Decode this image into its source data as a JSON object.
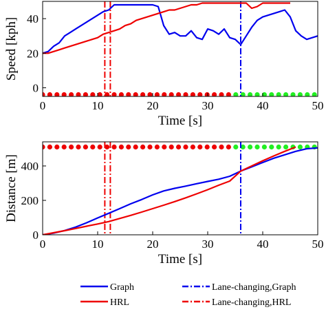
{
  "chart_data": [
    {
      "type": "line",
      "xlabel": "Time [s]",
      "ylabel": "Speed [kph]",
      "xlim": [
        0,
        50
      ],
      "ylim": [
        -5,
        50
      ],
      "xticks": [
        "0",
        "10",
        "20",
        "30",
        "40",
        "50"
      ],
      "yticks": [
        "0",
        "20",
        "40"
      ],
      "grid": false,
      "series": [
        {
          "name": "Graph",
          "color": "#0000ee",
          "style": "solid",
          "x": [
            0,
            1,
            2,
            3,
            4,
            5,
            6,
            7,
            8,
            9,
            10,
            11,
            12,
            13,
            14,
            15,
            16,
            17,
            18,
            19,
            20,
            21,
            22,
            23,
            24,
            25,
            26,
            27,
            28,
            29,
            30,
            31,
            32,
            33,
            34,
            35,
            36,
            37,
            38,
            39,
            40,
            41,
            42,
            43,
            44,
            45,
            46,
            47,
            48,
            49,
            50
          ],
          "y": [
            20,
            21,
            24,
            26,
            30,
            32,
            34,
            36,
            38,
            40,
            42,
            44,
            45,
            48,
            48,
            48,
            48,
            48,
            48,
            48,
            48,
            47,
            36,
            31,
            32,
            30,
            30,
            33,
            29,
            28,
            34,
            33,
            31,
            34,
            29,
            28,
            25,
            30,
            35,
            39,
            41,
            42,
            43,
            44,
            45,
            41,
            33,
            30,
            28,
            29,
            30
          ]
        },
        {
          "name": "HRL",
          "color": "#ee0000",
          "style": "solid",
          "x": [
            0,
            1,
            2,
            3,
            4,
            5,
            6,
            7,
            8,
            9,
            10,
            11,
            12,
            13,
            14,
            15,
            16,
            17,
            18,
            19,
            20,
            21,
            22,
            23,
            24,
            25,
            26,
            27,
            28,
            29,
            30,
            31,
            32,
            33,
            34,
            35,
            36,
            37,
            38,
            39,
            40,
            41,
            42,
            43,
            44,
            45
          ],
          "y": [
            20,
            20,
            21,
            22,
            23,
            24,
            25,
            26,
            27,
            28,
            29,
            31,
            32,
            33,
            34,
            36,
            37,
            39,
            40,
            41,
            42,
            43,
            44,
            45,
            45,
            46,
            47,
            48,
            48,
            49,
            49,
            49,
            49,
            49,
            49,
            49,
            49,
            49,
            46,
            47,
            49,
            49,
            49,
            49,
            49,
            49
          ]
        }
      ],
      "vlines": [
        {
          "name": "Lane-changing,Graph",
          "x": 36,
          "color": "#0000ee",
          "style": "dashdot"
        },
        {
          "name": "Lane-changing,HRL",
          "x": 11.3,
          "color": "#ee0000",
          "style": "dashdot"
        },
        {
          "name": "Lane-changing,HRL",
          "x": 12.3,
          "color": "#ee0000",
          "style": "dashdot"
        }
      ],
      "markers": {
        "y": -4,
        "points": [
          {
            "x": 0,
            "c": "r"
          },
          {
            "x": 1.3,
            "c": "r"
          },
          {
            "x": 2.6,
            "c": "r"
          },
          {
            "x": 3.9,
            "c": "r"
          },
          {
            "x": 5.2,
            "c": "r"
          },
          {
            "x": 6.5,
            "c": "r"
          },
          {
            "x": 7.8,
            "c": "r"
          },
          {
            "x": 9.1,
            "c": "r"
          },
          {
            "x": 10.4,
            "c": "r"
          },
          {
            "x": 11.7,
            "c": "r"
          },
          {
            "x": 13,
            "c": "r"
          },
          {
            "x": 14.3,
            "c": "r"
          },
          {
            "x": 15.6,
            "c": "r"
          },
          {
            "x": 16.9,
            "c": "r"
          },
          {
            "x": 18.2,
            "c": "r"
          },
          {
            "x": 19.5,
            "c": "r"
          },
          {
            "x": 20.8,
            "c": "r"
          },
          {
            "x": 22.1,
            "c": "r"
          },
          {
            "x": 23.4,
            "c": "r"
          },
          {
            "x": 24.7,
            "c": "r"
          },
          {
            "x": 26,
            "c": "r"
          },
          {
            "x": 27.3,
            "c": "r"
          },
          {
            "x": 28.6,
            "c": "r"
          },
          {
            "x": 29.9,
            "c": "r"
          },
          {
            "x": 31.2,
            "c": "r"
          },
          {
            "x": 32.5,
            "c": "r"
          },
          {
            "x": 33.8,
            "c": "r"
          },
          {
            "x": 35.1,
            "c": "g"
          },
          {
            "x": 36.4,
            "c": "g"
          },
          {
            "x": 37.7,
            "c": "g"
          },
          {
            "x": 39,
            "c": "g"
          },
          {
            "x": 40.3,
            "c": "g"
          },
          {
            "x": 41.6,
            "c": "g"
          },
          {
            "x": 42.9,
            "c": "g"
          },
          {
            "x": 44.2,
            "c": "g"
          },
          {
            "x": 45.5,
            "c": "g"
          },
          {
            "x": 46.8,
            "c": "g"
          },
          {
            "x": 48.1,
            "c": "g"
          },
          {
            "x": 49.4,
            "c": "g"
          }
        ]
      }
    },
    {
      "type": "line",
      "xlabel": "Time [s]",
      "ylabel": "Distance [m]",
      "xlim": [
        0,
        50
      ],
      "ylim": [
        0,
        540
      ],
      "xticks": [
        "0",
        "10",
        "20",
        "30",
        "40",
        "50"
      ],
      "yticks": [
        "0",
        "200",
        "400"
      ],
      "grid": false,
      "series": [
        {
          "name": "Graph",
          "color": "#0000ee",
          "style": "solid",
          "x": [
            0,
            2,
            4,
            6,
            8,
            10,
            12,
            14,
            16,
            18,
            20,
            22,
            24,
            26,
            28,
            30,
            32,
            34,
            36,
            38,
            40,
            42,
            44,
            46,
            48,
            50
          ],
          "y": [
            0,
            10,
            25,
            45,
            70,
            98,
            125,
            152,
            180,
            205,
            232,
            255,
            270,
            283,
            297,
            310,
            323,
            340,
            370,
            395,
            420,
            445,
            465,
            485,
            500,
            505
          ]
        },
        {
          "name": "HRL",
          "color": "#ee0000",
          "style": "solid",
          "x": [
            0,
            2,
            4,
            6,
            8,
            10,
            12,
            14,
            16,
            18,
            20,
            22,
            24,
            26,
            28,
            30,
            32,
            34,
            36,
            38,
            40,
            42,
            44,
            46
          ],
          "y": [
            0,
            12,
            24,
            37,
            50,
            63,
            77,
            95,
            113,
            132,
            152,
            172,
            193,
            215,
            238,
            262,
            288,
            312,
            370,
            400,
            430,
            458,
            485,
            510
          ]
        }
      ],
      "vlines": [
        {
          "name": "Lane-changing,Graph",
          "x": 36,
          "color": "#0000ee",
          "style": "dashdot"
        },
        {
          "name": "Lane-changing,HRL",
          "x": 11.3,
          "color": "#ee0000",
          "style": "dashdot"
        },
        {
          "name": "Lane-changing,HRL",
          "x": 12.3,
          "color": "#ee0000",
          "style": "dashdot"
        }
      ],
      "markers": {
        "y": 510,
        "points": [
          {
            "x": 0,
            "c": "r"
          },
          {
            "x": 1.3,
            "c": "r"
          },
          {
            "x": 2.6,
            "c": "r"
          },
          {
            "x": 3.9,
            "c": "r"
          },
          {
            "x": 5.2,
            "c": "r"
          },
          {
            "x": 6.5,
            "c": "r"
          },
          {
            "x": 7.8,
            "c": "r"
          },
          {
            "x": 9.1,
            "c": "r"
          },
          {
            "x": 10.4,
            "c": "r"
          },
          {
            "x": 11.7,
            "c": "r"
          },
          {
            "x": 13,
            "c": "r"
          },
          {
            "x": 14.3,
            "c": "r"
          },
          {
            "x": 15.6,
            "c": "r"
          },
          {
            "x": 16.9,
            "c": "r"
          },
          {
            "x": 18.2,
            "c": "r"
          },
          {
            "x": 19.5,
            "c": "r"
          },
          {
            "x": 20.8,
            "c": "r"
          },
          {
            "x": 22.1,
            "c": "r"
          },
          {
            "x": 23.4,
            "c": "r"
          },
          {
            "x": 24.7,
            "c": "r"
          },
          {
            "x": 26,
            "c": "r"
          },
          {
            "x": 27.3,
            "c": "r"
          },
          {
            "x": 28.6,
            "c": "r"
          },
          {
            "x": 29.9,
            "c": "r"
          },
          {
            "x": 31.2,
            "c": "r"
          },
          {
            "x": 32.5,
            "c": "r"
          },
          {
            "x": 33.8,
            "c": "r"
          },
          {
            "x": 35.1,
            "c": "g"
          },
          {
            "x": 36.4,
            "c": "g"
          },
          {
            "x": 37.7,
            "c": "g"
          },
          {
            "x": 39,
            "c": "g"
          },
          {
            "x": 40.3,
            "c": "g"
          },
          {
            "x": 41.6,
            "c": "g"
          },
          {
            "x": 42.9,
            "c": "g"
          },
          {
            "x": 44.2,
            "c": "g"
          },
          {
            "x": 45.5,
            "c": "g"
          },
          {
            "x": 46.8,
            "c": "g"
          },
          {
            "x": 48.1,
            "c": "g"
          },
          {
            "x": 49.4,
            "c": "g"
          }
        ]
      }
    }
  ],
  "legend": {
    "items": [
      {
        "label": "Graph",
        "color": "#0000ee",
        "style": "solid"
      },
      {
        "label": "Lane-changing,Graph",
        "color": "#0000ee",
        "style": "dashdot"
      },
      {
        "label": "HRL",
        "color": "#ee0000",
        "style": "solid"
      },
      {
        "label": "Lane-changing,HRL",
        "color": "#ee0000",
        "style": "dashdot"
      }
    ]
  },
  "colors": {
    "red_marker": "#ee0000",
    "green_marker": "#22ee22"
  }
}
